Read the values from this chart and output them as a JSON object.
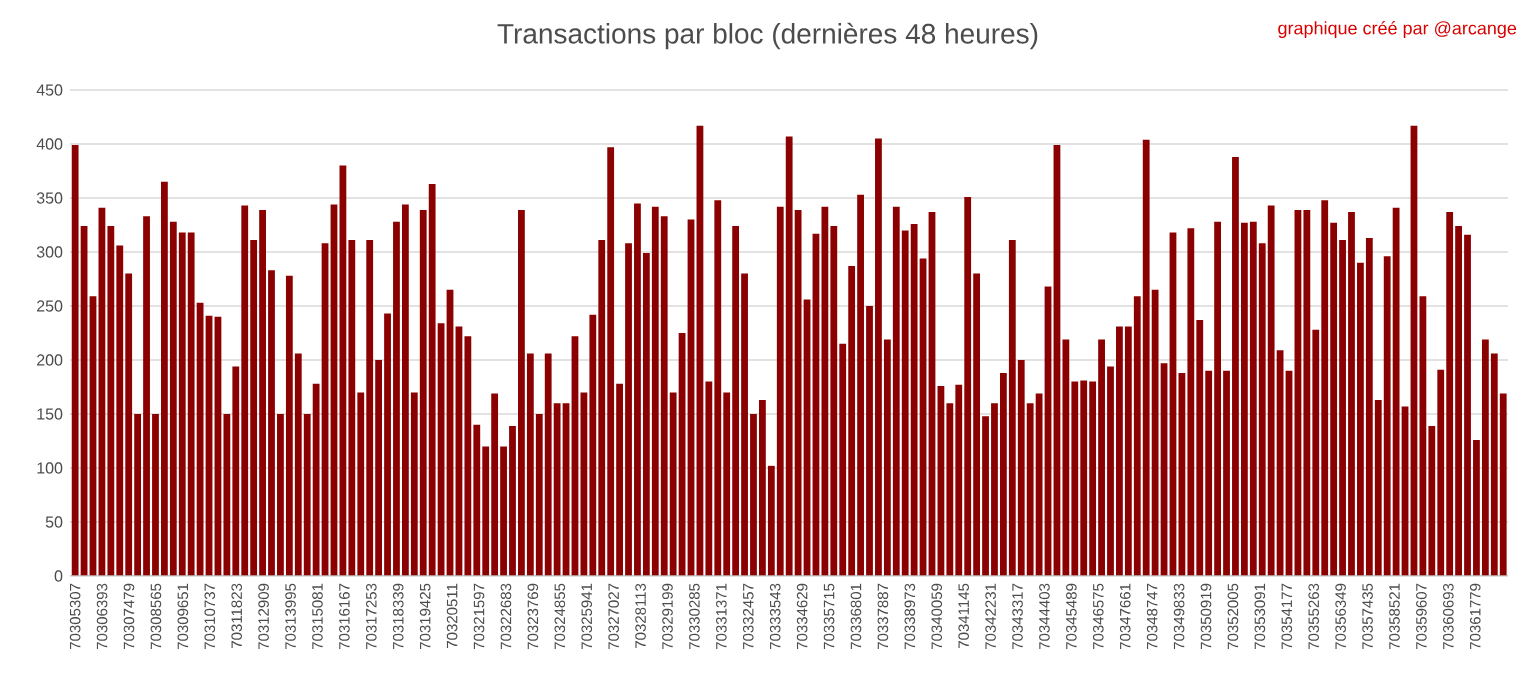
{
  "chart_data": {
    "type": "bar",
    "title": "Transactions par bloc (dernières 48 heures)",
    "annotations": [
      "graphique créé par @arcange"
    ],
    "color": "#8b0000",
    "grid": "y",
    "x": [
      70305307,
      70305667,
      70306027,
      70306387,
      70306747,
      70307107,
      70307467,
      70307827,
      70308187,
      70308547,
      70308907,
      70309267,
      70309627,
      70309987,
      70310347,
      70310707,
      70311067,
      70311427,
      70311787,
      70312147,
      70312507,
      70312867,
      70313227,
      70313587,
      70313947,
      70314307,
      70314667,
      70315027,
      70315387,
      70315747,
      70316107,
      70316467,
      70316827,
      70317187,
      70317547,
      70317907,
      70318267,
      70318627,
      70318987,
      70319347,
      70319707,
      70320067,
      70320427,
      70320787,
      70321147,
      70321507,
      70321867,
      70322227,
      70322587,
      70322947,
      70323307,
      70323667,
      70324027,
      70324387,
      70324747,
      70325107,
      70325467,
      70325827,
      70326187,
      70326547,
      70326907,
      70327267,
      70327627,
      70327987,
      70328347,
      70328707,
      70329067,
      70329427,
      70329787,
      70330147,
      70330507,
      70330867,
      70331227,
      70331587,
      70331947,
      70332307,
      70332667,
      70333027,
      70333387,
      70333747,
      70334107,
      70334467,
      70334827,
      70335187,
      70335547,
      70335907,
      70336267,
      70336627,
      70336987,
      70337347,
      70337707,
      70338067,
      70338427,
      70338787,
      70339147,
      70339507,
      70339867,
      70340227,
      70340587,
      70340947,
      70341307,
      70341667,
      70342027,
      70342387,
      70342747,
      70343107,
      70343467,
      70343827,
      70344187,
      70344547,
      70344907,
      70345267,
      70345627,
      70345987,
      70346347,
      70346707,
      70347067,
      70347427,
      70347787,
      70348147,
      70348507,
      70348867,
      70349227,
      70349587,
      70349947,
      70350307,
      70350667,
      70351027,
      70351387,
      70351747,
      70352107,
      70352467,
      70352827,
      70353187,
      70353547,
      70353907,
      70354267,
      70354627,
      70354987,
      70355347,
      70355707,
      70356067,
      70356427,
      70356787,
      70357147,
      70357507,
      70357867,
      70358227,
      70358587,
      70358947,
      70359307,
      70359667,
      70360027,
      70360387,
      70360747,
      70361107,
      70361467,
      70361827,
      70362187,
      70362547,
      70362907
    ],
    "values": [
      399,
      324,
      259,
      341,
      324,
      306,
      280,
      150,
      333,
      150,
      365,
      328,
      318,
      318,
      253,
      241,
      240,
      150,
      194,
      343,
      311,
      339,
      283,
      150,
      278,
      206,
      150,
      178,
      308,
      344,
      380,
      311,
      170,
      311,
      200,
      243,
      328,
      344,
      170,
      339,
      363,
      234,
      265,
      231,
      222,
      140,
      120,
      169,
      120,
      139,
      339,
      206,
      150,
      206,
      160,
      160,
      222,
      170,
      242,
      311,
      397,
      178,
      308,
      345,
      299,
      342,
      333,
      170,
      225,
      330,
      417,
      180,
      348,
      170,
      324,
      280,
      150,
      163,
      102,
      342,
      407,
      339,
      256,
      317,
      342,
      324,
      215,
      287,
      353,
      250,
      405,
      219,
      342,
      320,
      326,
      294,
      337,
      176,
      160,
      177,
      351,
      280,
      148,
      160,
      188,
      311,
      200,
      160,
      169,
      268,
      399,
      219,
      180,
      181,
      180,
      219,
      194,
      231,
      231,
      259,
      404,
      265,
      197,
      318,
      188,
      322,
      237,
      190,
      328,
      190,
      388,
      327,
      328,
      308,
      343,
      209,
      190,
      339,
      339,
      228,
      348,
      327,
      311,
      337,
      290,
      313,
      163,
      296,
      341,
      157,
      417,
      259,
      139,
      191,
      337,
      324,
      316,
      126,
      219,
      206,
      169
    ],
    "xlim": [
      70305100,
      70363100
    ],
    "ylim": [
      0,
      450
    ],
    "yticks": [
      0,
      50,
      100,
      150,
      200,
      250,
      300,
      350,
      400,
      450
    ],
    "xticks": [
      70305307,
      70306393,
      70307479,
      70308565,
      70309651,
      70310737,
      70311823,
      70312909,
      70313995,
      70315081,
      70316167,
      70317253,
      70318339,
      70319425,
      70320511,
      70321597,
      70322683,
      70323769,
      70324855,
      70325941,
      70327027,
      70328113,
      70329199,
      70330285,
      70331371,
      70332457,
      70333543,
      70334629,
      70335715,
      70336801,
      70337887,
      70338973,
      70340059,
      70341145,
      70342231,
      70343317,
      70344403,
      70345489,
      70346575,
      70347661,
      70348747,
      70349833,
      70350919,
      70352005,
      70353091,
      70354177,
      70355263,
      70356349,
      70357435,
      70358521,
      70359607,
      70360693,
      70361779
    ]
  }
}
